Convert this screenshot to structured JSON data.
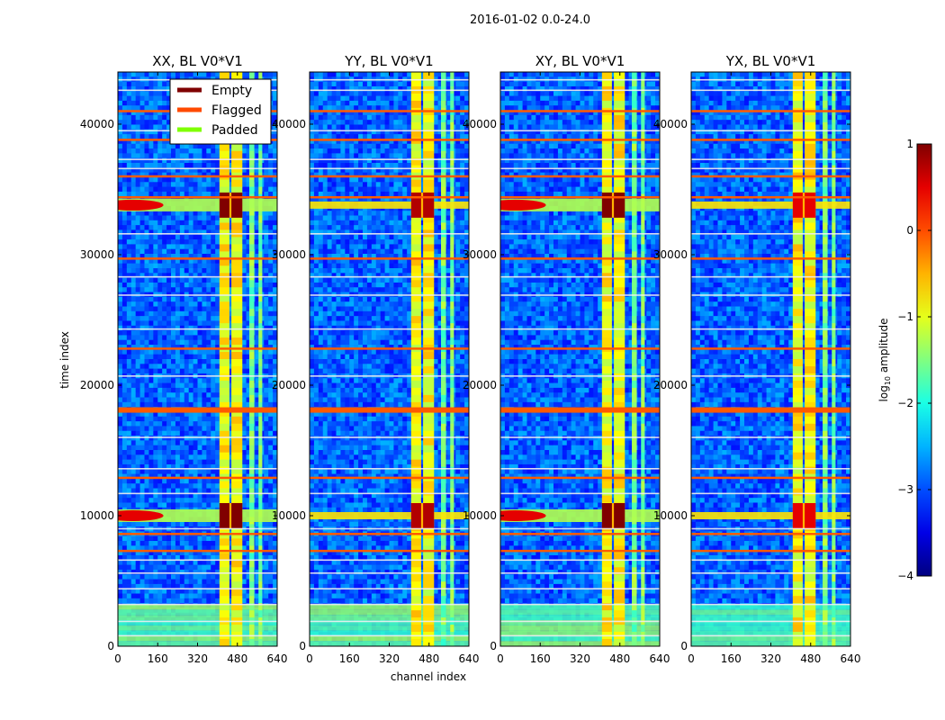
{
  "chart_data": {
    "type": "heatmap",
    "suptitle": "2016-01-02 0.0-24.0",
    "xlabel": "channel index",
    "ylabel": "time index",
    "xlim": [
      0,
      640
    ],
    "ylim": [
      0,
      44000
    ],
    "x_ticks": [
      0,
      160,
      320,
      480,
      640
    ],
    "y_ticks": [
      0,
      10000,
      20000,
      30000,
      40000
    ],
    "panels": [
      {
        "title": "XX, BL V0*V1",
        "bright_band": 0.95,
        "blob_left": true
      },
      {
        "title": "YY, BL V0*V1",
        "bright_band": 0.9,
        "blob_left": false
      },
      {
        "title": "XY, BL V0*V1",
        "bright_band": 0.95,
        "blob_left": true
      },
      {
        "title": "YX, BL V0*V1",
        "bright_band": 0.85,
        "blob_left": false
      }
    ],
    "rfi_channel_bands": [
      [
        408,
        448
      ],
      [
        456,
        500
      ],
      [
        528,
        548
      ],
      [
        565,
        580
      ]
    ],
    "bright_time_rows": [
      10000,
      33800
    ],
    "flagged_time_rows": [
      18100,
      22800,
      29700,
      34400,
      36000,
      38800,
      41000,
      12900,
      8600,
      7300
    ],
    "empty_time_rows": [
      800,
      1900,
      3200,
      4400,
      5600,
      6600,
      9000,
      11700,
      13600,
      16000,
      20700,
      24300,
      26900,
      28300,
      31600,
      36600,
      37300,
      39500,
      42600,
      43400
    ],
    "legend": [
      {
        "label": "Empty",
        "color": "#7f0000"
      },
      {
        "label": "Flagged",
        "color": "#ff4a00"
      },
      {
        "label": "Padded",
        "color": "#7fff00"
      }
    ],
    "colorbar": {
      "label": "log",
      "label_sub": "10",
      "label_rest": " amplitude",
      "range": [
        -4,
        1
      ],
      "ticks": [
        "1",
        "0",
        "−1",
        "−2",
        "−3",
        "−4"
      ],
      "tick_values": [
        1,
        0,
        -1,
        -2,
        -3,
        -4
      ]
    }
  }
}
